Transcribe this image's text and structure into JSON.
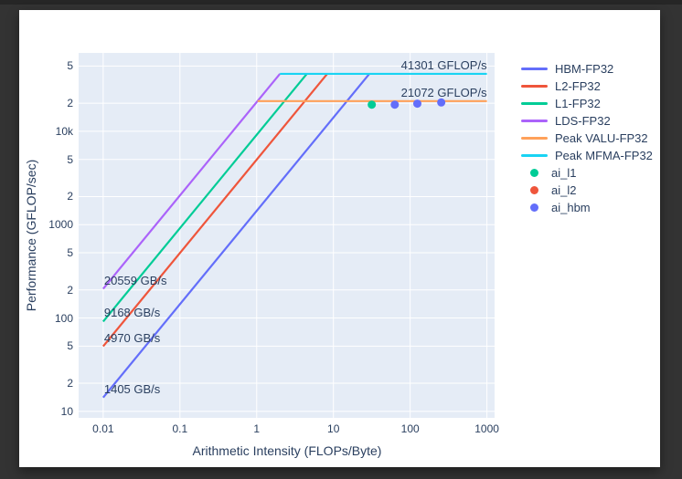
{
  "window": {
    "background": "#333333",
    "top_strip": "#262626",
    "card_background": "#ffffff"
  },
  "chart_data": {
    "type": "line",
    "subtype": "roofline",
    "title": "",
    "xlabel": "Arithmetic Intensity (FLOPs/Byte)",
    "ylabel": "Performance (GFLOP/sec)",
    "x_scale": "log",
    "y_scale": "log",
    "xlim_log": [
      -2.32,
      3.1
    ],
    "ylim_log": [
      0.93,
      4.84
    ],
    "grid": true,
    "plot_bg": "#E5ECF6",
    "grid_color": "#ffffff",
    "text_color": "#2a3f5f",
    "legend_position": "right",
    "ai_start": 0.01,
    "ai_end": 1000,
    "x_ticks": [
      {
        "value": 0.01,
        "label": "0.01"
      },
      {
        "value": 0.1,
        "label": "0.1"
      },
      {
        "value": 1,
        "label": "1"
      },
      {
        "value": 10,
        "label": "10"
      },
      {
        "value": 100,
        "label": "100"
      },
      {
        "value": 1000,
        "label": "1000"
      }
    ],
    "y_ticks": [
      {
        "value": 10,
        "label": "10"
      },
      {
        "value": 20,
        "label": "2"
      },
      {
        "value": 50,
        "label": "5"
      },
      {
        "value": 100,
        "label": "100"
      },
      {
        "value": 200,
        "label": "2"
      },
      {
        "value": 500,
        "label": "5"
      },
      {
        "value": 1000,
        "label": "1000"
      },
      {
        "value": 2000,
        "label": "2"
      },
      {
        "value": 5000,
        "label": "5"
      },
      {
        "value": 10000,
        "label": "10k"
      },
      {
        "value": 20000,
        "label": "2"
      },
      {
        "value": 50000,
        "label": "5"
      }
    ],
    "roofs": [
      {
        "name": "HBM-FP32",
        "color": "#636EFA",
        "kind": "bandwidth",
        "gbps": 1405,
        "label": "1405 GB/s"
      },
      {
        "name": "L2-FP32",
        "color": "#EF553B",
        "kind": "bandwidth",
        "gbps": 4970,
        "label": "4970 GB/s"
      },
      {
        "name": "L1-FP32",
        "color": "#00CC96",
        "kind": "bandwidth",
        "gbps": 9168,
        "label": "9168 GB/s"
      },
      {
        "name": "LDS-FP32",
        "color": "#AB63FA",
        "kind": "bandwidth",
        "gbps": 20559,
        "label": "20559 GB/s"
      },
      {
        "name": "Peak VALU-FP32",
        "color": "#FFA15A",
        "kind": "peak",
        "gflops": 21072,
        "label": "21072 GFLOP/s"
      },
      {
        "name": "Peak MFMA-FP32",
        "color": "#19D3F3",
        "kind": "peak",
        "gflops": 41301,
        "label": "41301 GFLOP/s"
      }
    ],
    "points": [
      {
        "series": "ai_l1",
        "color": "#00CC96",
        "ai": 31.6,
        "gflops": 19300
      },
      {
        "series": "ai_hbm",
        "color": "#636EFA",
        "ai": 63,
        "gflops": 19300
      },
      {
        "series": "ai_hbm",
        "color": "#636EFA",
        "ai": 124,
        "gflops": 19800
      },
      {
        "series": "ai_hbm",
        "color": "#636EFA",
        "ai": 254,
        "gflops": 20400
      }
    ],
    "legend": {
      "items": [
        {
          "label": "HBM-FP32",
          "color": "#636EFA",
          "marker": "line"
        },
        {
          "label": "L2-FP32",
          "color": "#EF553B",
          "marker": "line"
        },
        {
          "label": "L1-FP32",
          "color": "#00CC96",
          "marker": "line"
        },
        {
          "label": "LDS-FP32",
          "color": "#AB63FA",
          "marker": "line"
        },
        {
          "label": "Peak VALU-FP32",
          "color": "#FFA15A",
          "marker": "line"
        },
        {
          "label": "Peak MFMA-FP32",
          "color": "#19D3F3",
          "marker": "line"
        },
        {
          "label": "ai_l1",
          "color": "#00CC96",
          "marker": "dot"
        },
        {
          "label": "ai_l2",
          "color": "#EF553B",
          "marker": "dot"
        },
        {
          "label": "ai_hbm",
          "color": "#636EFA",
          "marker": "dot"
        }
      ]
    }
  }
}
